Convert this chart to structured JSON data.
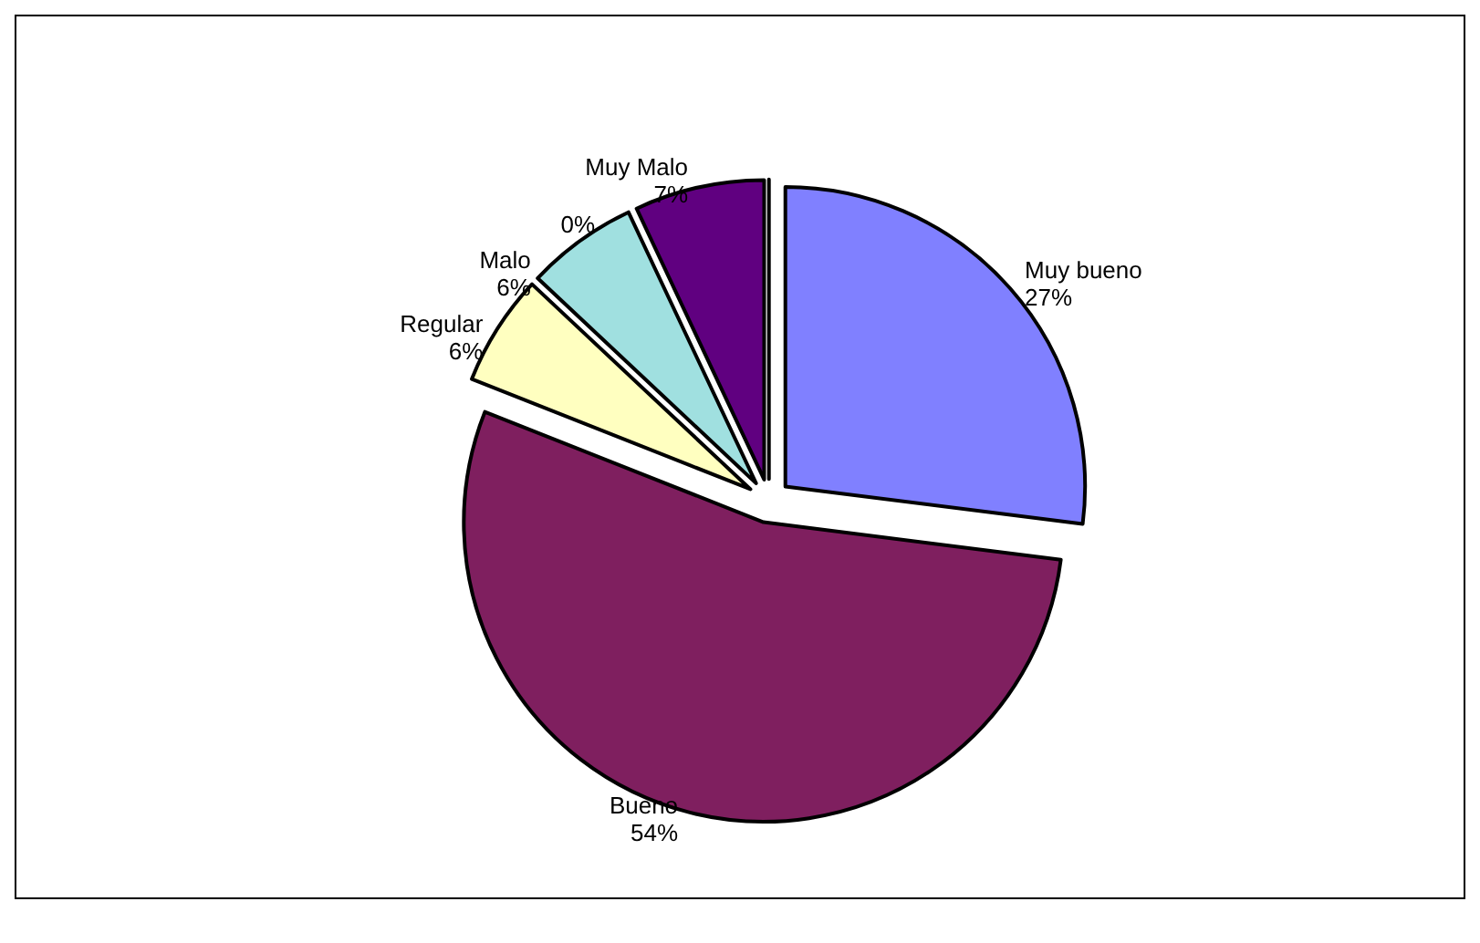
{
  "chart_data": {
    "type": "pie",
    "categories": [
      "Muy bueno",
      "Bueno",
      "Regular",
      "Malo",
      "Muy Malo",
      null
    ],
    "values": [
      27,
      54,
      6,
      6,
      7,
      0
    ],
    "value_labels": [
      "27%",
      "54%",
      "6%",
      "6%",
      "7%",
      "0%"
    ],
    "colors": [
      "#8080ff",
      "#7f1f5f",
      "#ffffc0",
      "#a0e0e0",
      "#600080",
      "#ffffff"
    ],
    "legend": false
  }
}
